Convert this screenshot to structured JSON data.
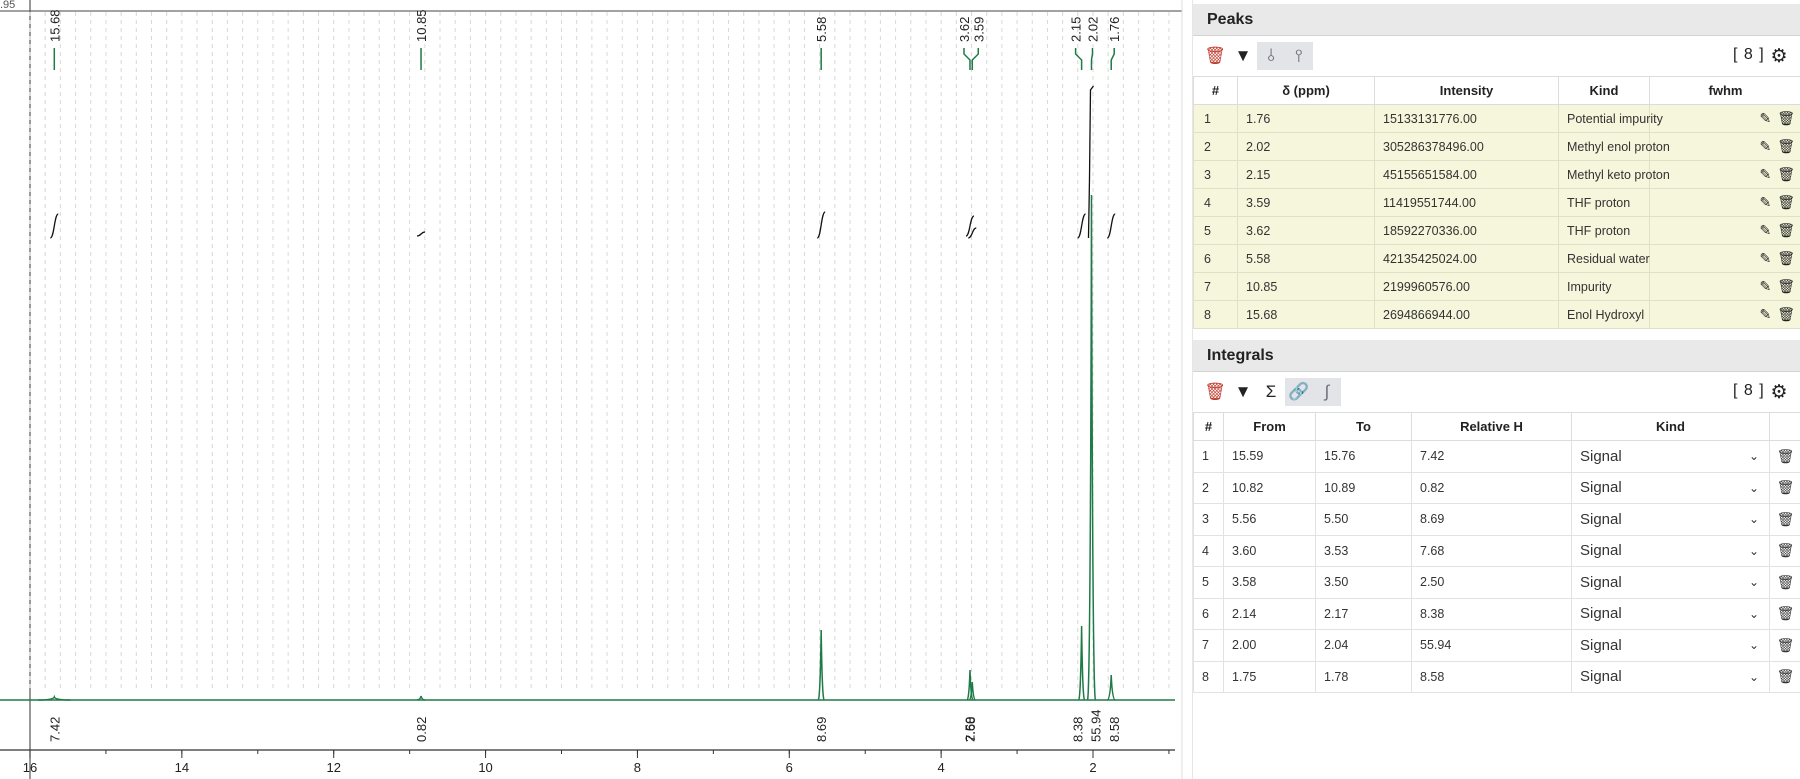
{
  "spectrum": {
    "corner_label": ".95",
    "x_ticks": [
      "16",
      "14",
      "12",
      "10",
      "8",
      "6",
      "4",
      "2"
    ],
    "peak_labels": [
      "15.68",
      "10.85",
      "5.58",
      "3.62",
      "3.59",
      "2.15",
      "2.02",
      "1.76"
    ],
    "integral_labels": [
      "7.42",
      "0.82",
      "8.69",
      "7.68",
      "2.50",
      "8.38",
      "55.94",
      "8.58"
    ],
    "spectrum_color": "#1e7a46",
    "integral_color": "#111111"
  },
  "peaks": {
    "title": "Peaks",
    "count": "[ 8 ]",
    "columns": [
      "#",
      "δ (ppm)",
      "Intensity",
      "Kind",
      "fwhm"
    ],
    "rows": [
      {
        "n": "1",
        "delta": "1.76",
        "intensity": "15133131776.00",
        "kind": "Potential impurity"
      },
      {
        "n": "2",
        "delta": "2.02",
        "intensity": "305286378496.00",
        "kind": "Methyl enol proton"
      },
      {
        "n": "3",
        "delta": "2.15",
        "intensity": "45155651584.00",
        "kind": "Methyl keto proton"
      },
      {
        "n": "4",
        "delta": "3.59",
        "intensity": "11419551744.00",
        "kind": "THF proton"
      },
      {
        "n": "5",
        "delta": "3.62",
        "intensity": "18592270336.00",
        "kind": "THF proton"
      },
      {
        "n": "6",
        "delta": "5.58",
        "intensity": "42135425024.00",
        "kind": "Residual water"
      },
      {
        "n": "7",
        "delta": "10.85",
        "intensity": "2199960576.00",
        "kind": "Impurity"
      },
      {
        "n": "8",
        "delta": "15.68",
        "intensity": "2694866944.00",
        "kind": "Enol Hydroxyl"
      }
    ]
  },
  "integrals": {
    "title": "Integrals",
    "count": "[ 8 ]",
    "columns": [
      "#",
      "From",
      "To",
      "Relative H",
      "Kind"
    ],
    "rows": [
      {
        "n": "1",
        "from": "15.59",
        "to": "15.76",
        "relative": "7.42",
        "kind": "Signal"
      },
      {
        "n": "2",
        "from": "10.82",
        "to": "10.89",
        "relative": "0.82",
        "kind": "Signal"
      },
      {
        "n": "3",
        "from": "5.56",
        "to": "5.50",
        "relative": "8.69",
        "kind": "Signal"
      },
      {
        "n": "4",
        "from": "3.60",
        "to": "3.53",
        "relative": "7.68",
        "kind": "Signal"
      },
      {
        "n": "5",
        "from": "3.58",
        "to": "3.50",
        "relative": "2.50",
        "kind": "Signal"
      },
      {
        "n": "6",
        "from": "2.14",
        "to": "2.17",
        "relative": "8.38",
        "kind": "Signal"
      },
      {
        "n": "7",
        "from": "2.00",
        "to": "2.04",
        "relative": "55.94",
        "kind": "Signal"
      },
      {
        "n": "8",
        "from": "1.75",
        "to": "1.78",
        "relative": "8.58",
        "kind": "Signal"
      }
    ]
  },
  "icons": {
    "delete": "trash-icon",
    "filter": "filter-icon",
    "sum": "sigma-icon",
    "link": "link-icon",
    "settings": "gear-icon"
  }
}
